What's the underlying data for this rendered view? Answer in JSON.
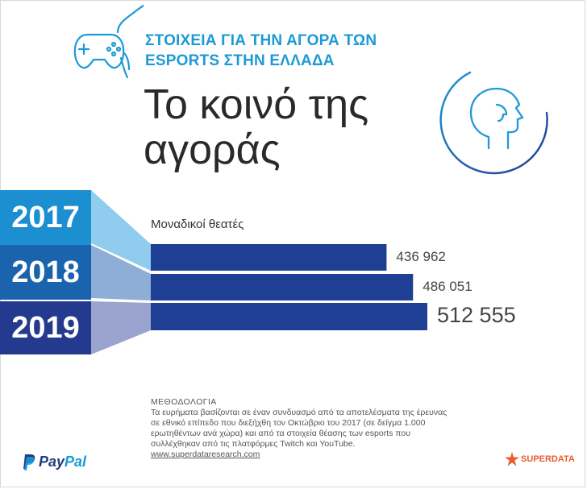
{
  "header": {
    "title_line1": "ΣΤΟΙΧΕΙΑ ΓΙΑ ΤΗΝ ΑΓΟΡΑ ΤΩΝ",
    "title_line2": "ESPORTS ΣΤΗΝ ΕΛΛΑΔΑ"
  },
  "headline": {
    "line1": "Το κοινό της",
    "line2": "αγοράς"
  },
  "chart_data": {
    "type": "bar",
    "orientation": "horizontal",
    "categories": [
      "2017",
      "2018",
      "2019"
    ],
    "series": [
      {
        "name": "Μοναδικοί θεατές",
        "values": [
          436962,
          486051,
          512555
        ]
      }
    ],
    "value_labels": [
      "436 962",
      "486 051",
      "512 555"
    ],
    "xlim": [
      0,
      512555
    ]
  },
  "methodology": {
    "title": "ΜΕΘΟΔΟΛΟΓΙΑ",
    "text": "Τα ευρήματα βασίζονται σε έναν συνδυασμό από τα αποτελέσματα της έρευνας σε εθνικό επίπεδο που διεξήχθη τον Οκτώβριο του 2017 (σε δείγμα 1.000 ερωτηθέντων ανά χώρα) και από τα στοιχεία θέασης των esports που συλλέχθηκαν από τις πλατφόρμες Twitch και YouTube.",
    "url": "www.superdataresearch.com"
  },
  "logos": {
    "paypal_a": "Pay",
    "paypal_b": "Pal",
    "superdata": "SUPERDATA"
  },
  "colors": {
    "accent": "#1d9ad6",
    "bar": "#1f3f94",
    "year_2017": "#1c8fd0",
    "year_2018": "#1a63ad",
    "year_2019": "#243a8e"
  },
  "icons": [
    "gamepad-icon",
    "head-profile-icon",
    "paypal-logo",
    "superdata-star-icon"
  ]
}
